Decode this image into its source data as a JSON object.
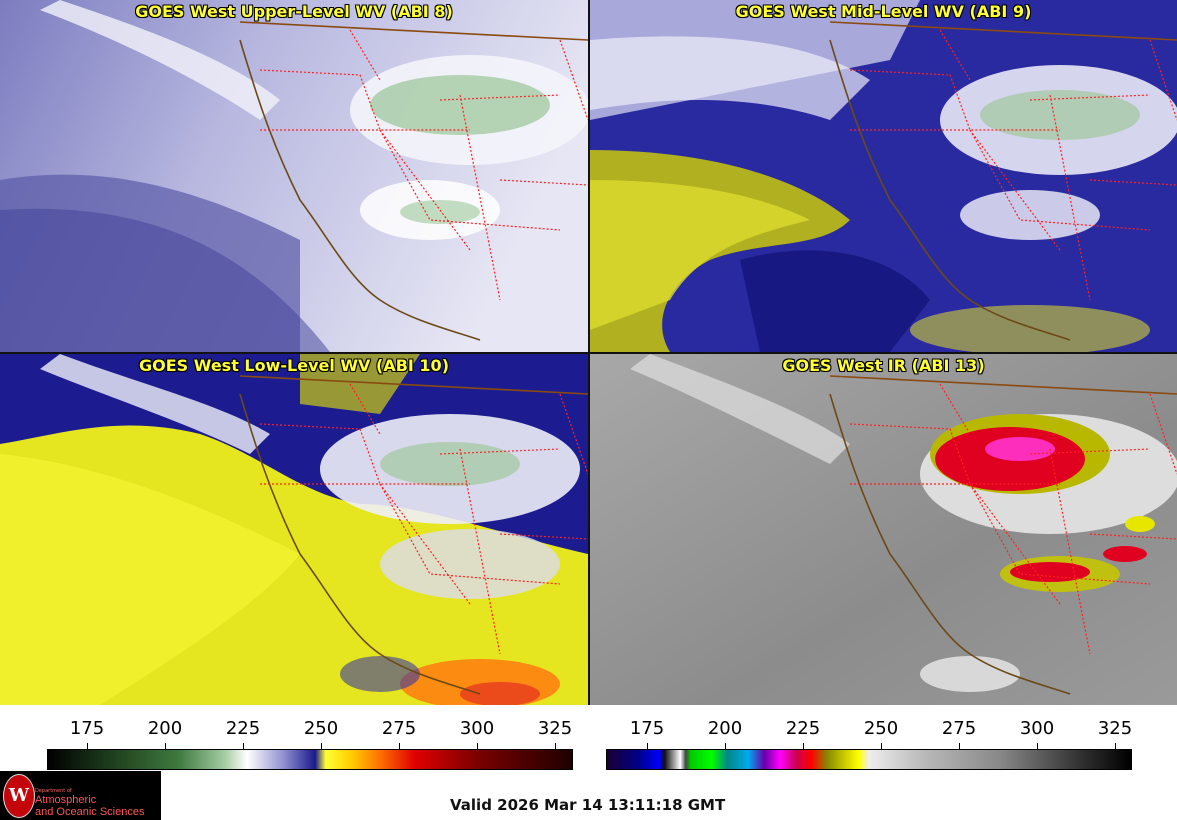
{
  "panels": [
    {
      "title": "GOES West Upper-Level WV (ABI 8)"
    },
    {
      "title": "GOES West Mid-Level WV (ABI 9)"
    },
    {
      "title": "GOES West Low-Level WV (ABI 10)"
    },
    {
      "title": "GOES West IR (ABI 13)"
    }
  ],
  "colorbars": [
    {
      "ticks": [
        "175",
        "200",
        "225",
        "250",
        "275",
        "300",
        "325"
      ]
    },
    {
      "ticks": [
        "175",
        "200",
        "225",
        "250",
        "275",
        "300",
        "325"
      ]
    }
  ],
  "logo": {
    "department": "Department of",
    "line1": "Atmospheric",
    "line2": "and Oceanic Sciences",
    "seal": "W"
  },
  "footer": {
    "valid": "Valid 2026 Mar 14 13:11:18 GMT"
  }
}
